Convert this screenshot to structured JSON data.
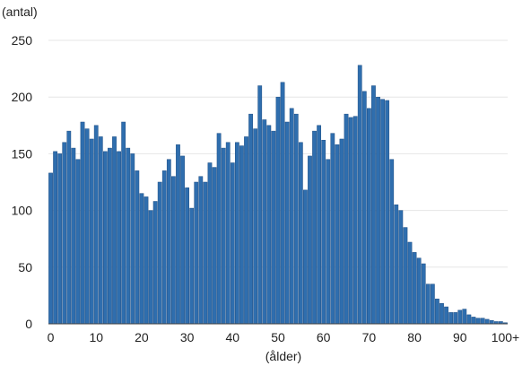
{
  "chart_data": {
    "type": "bar",
    "ylabel": "(antal)",
    "xlabel": "(ålder)",
    "ylim": [
      0,
      250
    ],
    "yticks": [
      0,
      50,
      100,
      150,
      200,
      250
    ],
    "xticks": [
      "0",
      "10",
      "20",
      "30",
      "40",
      "50",
      "60",
      "70",
      "80",
      "90",
      "100+"
    ],
    "grid": true,
    "bar_color": "#2f6eae",
    "categories": [
      "0",
      "1",
      "2",
      "3",
      "4",
      "5",
      "6",
      "7",
      "8",
      "9",
      "10",
      "11",
      "12",
      "13",
      "14",
      "15",
      "16",
      "17",
      "18",
      "19",
      "20",
      "21",
      "22",
      "23",
      "24",
      "25",
      "26",
      "27",
      "28",
      "29",
      "30",
      "31",
      "32",
      "33",
      "34",
      "35",
      "36",
      "37",
      "38",
      "39",
      "40",
      "41",
      "42",
      "43",
      "44",
      "45",
      "46",
      "47",
      "48",
      "49",
      "50",
      "51",
      "52",
      "53",
      "54",
      "55",
      "56",
      "57",
      "58",
      "59",
      "60",
      "61",
      "62",
      "63",
      "64",
      "65",
      "66",
      "67",
      "68",
      "69",
      "70",
      "71",
      "72",
      "73",
      "74",
      "75",
      "76",
      "77",
      "78",
      "79",
      "80",
      "81",
      "82",
      "83",
      "84",
      "85",
      "86",
      "87",
      "88",
      "89",
      "90",
      "91",
      "92",
      "93",
      "94",
      "95",
      "96",
      "97",
      "98",
      "99",
      "100+"
    ],
    "values": [
      133,
      152,
      150,
      160,
      170,
      155,
      145,
      178,
      172,
      163,
      175,
      165,
      152,
      155,
      165,
      152,
      178,
      155,
      150,
      135,
      115,
      112,
      100,
      108,
      125,
      135,
      145,
      130,
      158,
      148,
      120,
      102,
      125,
      130,
      125,
      142,
      138,
      168,
      155,
      160,
      142,
      160,
      157,
      165,
      185,
      172,
      210,
      180,
      175,
      170,
      200,
      213,
      178,
      190,
      185,
      160,
      118,
      148,
      170,
      175,
      162,
      145,
      168,
      158,
      163,
      185,
      182,
      183,
      228,
      205,
      190,
      210,
      200,
      198,
      197,
      145,
      105,
      100,
      85,
      72,
      63,
      58,
      53,
      35,
      35,
      22,
      18,
      15,
      10,
      10,
      12,
      13,
      8,
      6,
      5,
      5,
      4,
      3,
      2,
      2,
      1
    ]
  }
}
